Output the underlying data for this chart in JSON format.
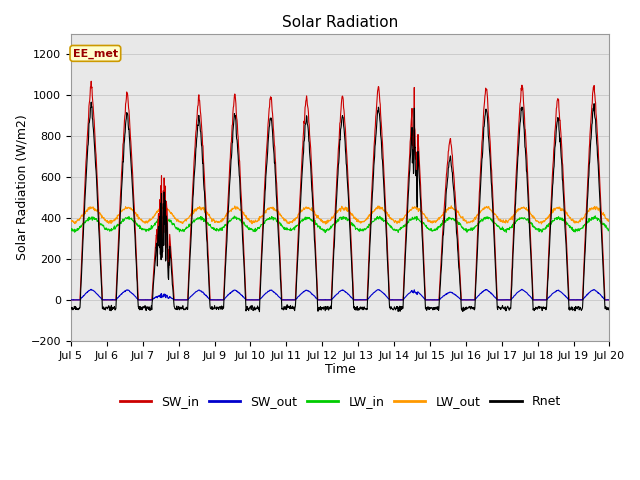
{
  "title": "Solar Radiation",
  "xlabel": "Time",
  "ylabel": "Solar Radiation (W/m2)",
  "ylim": [
    -200,
    1300
  ],
  "yticks": [
    -200,
    0,
    200,
    400,
    600,
    800,
    1000,
    1200
  ],
  "xlim_start": 5,
  "xlim_end": 20,
  "xtick_labels": [
    "Jul 5",
    "Jul 6",
    "Jul 7",
    "Jul 8",
    "Jul 9",
    "Jul 10",
    "Jul 11",
    "Jul 12",
    "Jul 13",
    "Jul 14",
    "Jul 15",
    "Jul 16",
    "Jul 17",
    "Jul 18",
    "Jul 19",
    "Jul 20"
  ],
  "colors": {
    "SW_in": "#cc0000",
    "SW_out": "#0000cc",
    "LW_in": "#00cc00",
    "LW_out": "#ff9900",
    "Rnet": "#000000"
  },
  "annotation_text": "EE_met",
  "annotation_color": "#990000",
  "annotation_bg": "#ffffcc",
  "annotation_border": "#cc9900",
  "grid_color": "#cccccc",
  "plot_area_bg": "#e8e8e8",
  "fig_bg": "#ffffff",
  "n_days": 15,
  "dt_hours": 0.25,
  "LW_in_base": 370,
  "LW_out_base": 415,
  "night_Rnet": -80
}
